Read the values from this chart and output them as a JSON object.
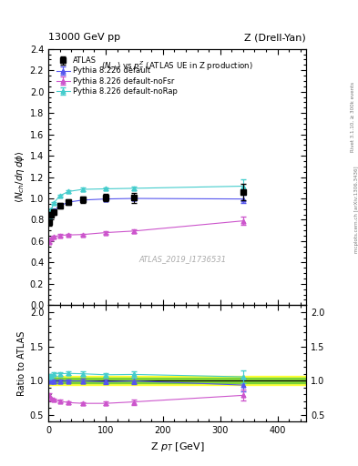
{
  "title_left": "13000 GeV pp",
  "title_right": "Z (Drell-Yan)",
  "plot_title": "<N_{ch}> vs p^{Z}_{T} (ATLAS UE in Z production)",
  "ylabel_main": "<N_{ch}/d\\eta d\\phi>",
  "ylabel_ratio": "Ratio to ATLAS",
  "xlabel": "Z p_{T} [GeV]",
  "watermark": "ATLAS_2019_I1736531",
  "right_label_bottom": "mcplots.cern.ch [arXiv:1306.3436]",
  "right_label_top": "Rivet 3.1.10, ≥ 300k events",
  "atlas_x": [
    2.0,
    5.0,
    10.0,
    20.0,
    35.0,
    60.0,
    100.0,
    150.0,
    340.0
  ],
  "atlas_y": [
    0.775,
    0.845,
    0.875,
    0.93,
    0.965,
    0.99,
    1.01,
    1.005,
    1.06
  ],
  "atlas_yerr": [
    0.03,
    0.025,
    0.025,
    0.025,
    0.025,
    0.03,
    0.035,
    0.05,
    0.08
  ],
  "py_default_x": [
    2.0,
    5.0,
    10.0,
    20.0,
    35.0,
    60.0,
    100.0,
    150.0,
    340.0
  ],
  "py_default_y": [
    0.8,
    0.855,
    0.89,
    0.93,
    0.965,
    0.985,
    0.995,
    1.0,
    0.995
  ],
  "py_default_yerr": [
    0.01,
    0.01,
    0.01,
    0.01,
    0.01,
    0.01,
    0.015,
    0.015,
    0.04
  ],
  "py_default_color": "#5555ee",
  "py_nofsr_x": [
    2.0,
    5.0,
    10.0,
    20.0,
    35.0,
    60.0,
    100.0,
    150.0,
    340.0
  ],
  "py_nofsr_y": [
    0.595,
    0.625,
    0.64,
    0.655,
    0.658,
    0.662,
    0.68,
    0.695,
    0.79
  ],
  "py_nofsr_yerr": [
    0.01,
    0.01,
    0.01,
    0.01,
    0.01,
    0.01,
    0.015,
    0.015,
    0.04
  ],
  "py_nofsr_color": "#cc55cc",
  "py_norap_x": [
    2.0,
    5.0,
    10.0,
    20.0,
    35.0,
    60.0,
    100.0,
    150.0,
    340.0
  ],
  "py_norap_y": [
    0.82,
    0.895,
    0.96,
    1.025,
    1.065,
    1.085,
    1.09,
    1.095,
    1.115
  ],
  "py_norap_yerr": [
    0.01,
    0.01,
    0.01,
    0.01,
    0.01,
    0.015,
    0.015,
    0.02,
    0.06
  ],
  "py_norap_color": "#44cccc",
  "ratio_default_y": [
    1.0,
    0.995,
    0.99,
    0.99,
    0.995,
    0.995,
    0.985,
    0.995,
    0.935
  ],
  "ratio_default_yerr": [
    0.03,
    0.025,
    0.025,
    0.025,
    0.025,
    0.03,
    0.035,
    0.05,
    0.09
  ],
  "ratio_nofsr_y": [
    0.795,
    0.735,
    0.72,
    0.7,
    0.68,
    0.668,
    0.668,
    0.69,
    0.785
  ],
  "ratio_nofsr_yerr": [
    0.025,
    0.02,
    0.02,
    0.02,
    0.02,
    0.02,
    0.025,
    0.04,
    0.08
  ],
  "ratio_norap_y": [
    1.06,
    1.065,
    1.1,
    1.1,
    1.105,
    1.1,
    1.085,
    1.09,
    1.055
  ],
  "ratio_norap_yerr": [
    0.03,
    0.025,
    0.025,
    0.025,
    0.025,
    0.03,
    0.03,
    0.05,
    0.09
  ],
  "band_yellow": [
    0.93,
    1.07
  ],
  "band_green": [
    0.96,
    1.04
  ],
  "xlim": [
    0,
    450
  ],
  "ylim_main": [
    0.0,
    2.4
  ],
  "ylim_ratio": [
    0.4,
    2.1
  ],
  "legend_labels": [
    "ATLAS",
    "Pythia 8.226 default",
    "Pythia 8.226 default-noFsr",
    "Pythia 8.226 default-noRap"
  ],
  "atlas_color": "black"
}
